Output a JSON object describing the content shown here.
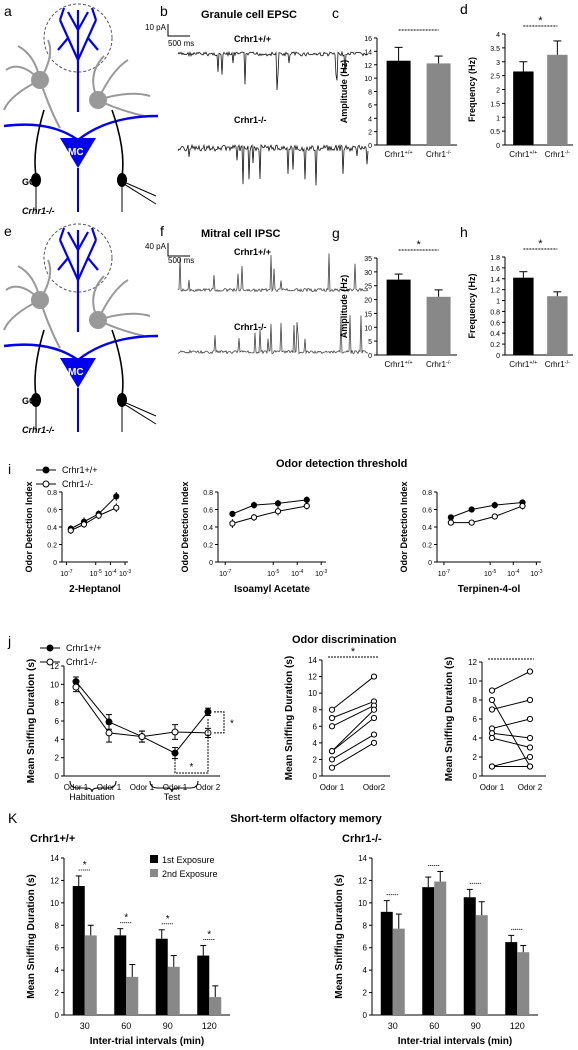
{
  "panels": {
    "a": {
      "letter": "a",
      "mc": "MC",
      "gc": "GC",
      "genotype": "Crhr1-/-"
    },
    "b": {
      "letter": "b",
      "title": "Granule cell EPSC",
      "scale_y": "10 pA",
      "scale_x": "500 ms",
      "trace_wt": "Crhr1+/+",
      "trace_ko": "Crhr1-/-"
    },
    "e": {
      "letter": "e",
      "mc": "MC",
      "gc": "GC",
      "genotype": "Crhr1-/-"
    },
    "f": {
      "letter": "f",
      "title": "Mitral cell IPSC",
      "scale_y": "40 pA",
      "scale_x": "500 ms",
      "trace_wt": "Crhr1+/+",
      "trace_ko": "Crhr1-/-"
    },
    "i": {
      "letter": "i",
      "title": "Odor detection threshold"
    },
    "j": {
      "letter": "j",
      "title": "Odor discrimination",
      "group_habituation": "Habituation",
      "group_test": "Test"
    },
    "k": {
      "letter": "K",
      "title": "Short-term olfactory memory",
      "left_label": "Crhr1+/+",
      "right_label": "Crhr1-/-"
    }
  },
  "colors": {
    "wt": "#000000",
    "ko": "#888888",
    "neuron_blue": "#0000ee",
    "neuron_gray": "#999999"
  },
  "chart_data": [
    {
      "id": "c",
      "type": "bar",
      "letter": "c",
      "categories": [
        "Crhr1+/+",
        "Crhr1-/-"
      ],
      "values": [
        12.6,
        12.2
      ],
      "errors": [
        2.0,
        1.1
      ],
      "colors": [
        "#000000",
        "#888888"
      ],
      "ylabel": "Amplitude (Hz)",
      "ylim": [
        0,
        16
      ],
      "yticks": [
        0,
        2,
        4,
        6,
        8,
        10,
        12,
        14,
        16
      ],
      "sig": ""
    },
    {
      "id": "d",
      "type": "bar",
      "letter": "d",
      "categories": [
        "Crhr1+/+",
        "Crhr1-/-"
      ],
      "values": [
        2.65,
        3.25
      ],
      "errors": [
        0.35,
        0.5
      ],
      "colors": [
        "#000000",
        "#888888"
      ],
      "ylabel": "Frequency (Hz)",
      "ylim": [
        0,
        4
      ],
      "yticks": [
        0,
        0.5,
        1,
        1.5,
        2,
        2.5,
        3,
        3.5,
        4
      ],
      "sig": "*"
    },
    {
      "id": "g",
      "type": "bar",
      "letter": "g",
      "categories": [
        "Crhr1+/+",
        "Crhr1-/-"
      ],
      "values": [
        27.2,
        21
      ],
      "errors": [
        2.0,
        2.5
      ],
      "colors": [
        "#000000",
        "#888888"
      ],
      "ylabel": "Amplitude (Hz)",
      "ylim": [
        0,
        35
      ],
      "yticks": [
        0,
        5,
        10,
        15,
        20,
        25,
        30,
        35
      ],
      "sig": "*"
    },
    {
      "id": "h",
      "type": "bar",
      "letter": "h",
      "categories": [
        "Crhr1+/+",
        "Crhr1-/-"
      ],
      "values": [
        1.42,
        1.08
      ],
      "errors": [
        0.11,
        0.08
      ],
      "colors": [
        "#000000",
        "#888888"
      ],
      "ylabel": "Frequency (Hz)",
      "ylim": [
        0,
        1.8
      ],
      "yticks": [
        0,
        0.2,
        0.4,
        0.6,
        0.8,
        1,
        1.2,
        1.4,
        1.6,
        1.8
      ],
      "sig": "*"
    },
    {
      "id": "i1",
      "type": "line",
      "xlabel": "2-Heptanol",
      "ylabel": "Odor Detection Index",
      "x": [
        -7,
        -6,
        -5,
        -4,
        -3
      ],
      "xticks": [
        "10-7",
        "10-5",
        "10-4",
        "10-3"
      ],
      "xtick_pos": [
        -7,
        -5,
        -4,
        -3
      ],
      "ylim": [
        0,
        0.8
      ],
      "yticks": [
        0,
        0.2,
        0.4,
        0.6,
        0.8
      ],
      "series": [
        {
          "name": "Crhr1+/+",
          "fill": "#000000",
          "values": [
            0.38,
            0.46,
            0.55,
            0.75
          ],
          "x": [
            -6.7,
            -5.8,
            -4.8,
            -3.6
          ],
          "err": [
            0.04,
            0.05,
            0.04,
            0.05
          ]
        },
        {
          "name": "Crhr1-/-",
          "fill": "#ffffff",
          "values": [
            0.36,
            0.43,
            0.53,
            0.62
          ],
          "x": [
            -6.7,
            -5.8,
            -4.8,
            -3.6
          ],
          "err": [
            0.04,
            0.04,
            0.04,
            0.05
          ]
        }
      ]
    },
    {
      "id": "i2",
      "type": "line",
      "xlabel": "Isoamyl Acetate",
      "ylabel": "Odor Detection Index",
      "xticks": [
        "10-7",
        "10-5",
        "10-4",
        "10-3"
      ],
      "xtick_pos": [
        -7,
        -5,
        -4,
        -3
      ],
      "ylim": [
        0,
        0.8
      ],
      "yticks": [
        0,
        0.2,
        0.4,
        0.6,
        0.8
      ],
      "series": [
        {
          "name": "Crhr1+/+",
          "fill": "#000000",
          "values": [
            0.55,
            0.65,
            0.67,
            0.71
          ],
          "x": [
            -6.7,
            -5.8,
            -4.8,
            -3.6
          ],
          "err": [
            0.03,
            0.04,
            0.04,
            0.04
          ]
        },
        {
          "name": "Crhr1-/-",
          "fill": "#ffffff",
          "values": [
            0.44,
            0.51,
            0.58,
            0.64
          ],
          "x": [
            -6.7,
            -5.8,
            -4.8,
            -3.6
          ],
          "err": [
            0.05,
            0.04,
            0.05,
            0.04
          ]
        }
      ]
    },
    {
      "id": "i3",
      "type": "line",
      "xlabel": "Terpinen-4-ol",
      "ylabel": "Odor Detection Index",
      "xticks": [
        "10-7",
        "10-5",
        "10-4",
        "10-3"
      ],
      "xtick_pos": [
        -7,
        -5,
        -4,
        -3
      ],
      "ylim": [
        0,
        0.8
      ],
      "yticks": [
        0,
        0.2,
        0.4,
        0.6,
        0.8
      ],
      "series": [
        {
          "name": "Crhr1+/+",
          "fill": "#000000",
          "values": [
            0.51,
            0.6,
            0.65,
            0.68
          ],
          "x": [
            -6.7,
            -5.8,
            -4.8,
            -3.6
          ],
          "err": [
            0.03,
            0.03,
            0.04,
            0.03
          ]
        },
        {
          "name": "Crhr1-/-",
          "fill": "#ffffff",
          "values": [
            0.45,
            0.45,
            0.52,
            0.64
          ],
          "x": [
            -6.7,
            -5.8,
            -4.8,
            -3.6
          ],
          "err": [
            0.03,
            0.03,
            0.03,
            0.04
          ]
        }
      ]
    },
    {
      "id": "j1",
      "type": "line",
      "ylabel": "Mean Sniffing Duration (s)",
      "categories": [
        "Odor 1",
        "Odor 1",
        "Odor 1",
        "Odor 1",
        "Odor 2"
      ],
      "ylim": [
        0,
        12
      ],
      "yticks": [
        0,
        2,
        4,
        6,
        8,
        10,
        12
      ],
      "series": [
        {
          "name": "Crhr1+/+",
          "fill": "#000000",
          "values": [
            10.3,
            5.9,
            4.3,
            2.5,
            7.0
          ],
          "err": [
            0.5,
            0.8,
            0.6,
            0.6,
            0.4
          ]
        },
        {
          "name": "Crhr1-/-",
          "fill": "#ffffff",
          "values": [
            9.7,
            4.7,
            4.3,
            4.8,
            4.7
          ],
          "err": [
            0.5,
            1.0,
            0.6,
            0.8,
            0.5
          ]
        }
      ],
      "sig": [
        "*",
        "*"
      ]
    },
    {
      "id": "j2",
      "type": "line",
      "ylabel": "Mean Sniffing Duration (s)",
      "categories": [
        "Odor 1",
        "Odor2"
      ],
      "ylim": [
        0,
        14
      ],
      "yticks": [
        0,
        2,
        4,
        6,
        8,
        10,
        12,
        14
      ],
      "sig": "*",
      "pairs": [
        [
          8,
          12
        ],
        [
          7,
          9
        ],
        [
          6,
          8.5
        ],
        [
          3,
          8
        ],
        [
          3,
          7
        ],
        [
          2,
          5
        ],
        [
          1,
          4
        ]
      ]
    },
    {
      "id": "j3",
      "type": "line",
      "ylabel": "Mean Sniffing Duration (s)",
      "categories": [
        "Odor 1",
        "Odor 2"
      ],
      "ylim": [
        0,
        12
      ],
      "yticks": [
        0,
        2,
        4,
        6,
        8,
        10,
        12
      ],
      "sig": "",
      "pairs": [
        [
          9,
          11
        ],
        [
          7,
          8
        ],
        [
          5,
          6
        ],
        [
          4.5,
          4
        ],
        [
          4,
          3
        ],
        [
          1,
          2
        ],
        [
          1,
          1
        ],
        [
          8,
          1
        ]
      ]
    },
    {
      "id": "k1",
      "type": "bar",
      "ylabel": "Mean Sniffing Duration (s)",
      "xlabel": "Inter-trial intervals (min)",
      "categories": [
        "30",
        "60",
        "90",
        "120"
      ],
      "ylim": [
        0,
        14
      ],
      "yticks": [
        0,
        2,
        4,
        6,
        8,
        10,
        12,
        14
      ],
      "series": [
        {
          "name": "1st Exposure",
          "color": "#000000",
          "values": [
            11.5,
            7.1,
            6.8,
            5.3
          ],
          "err": [
            0.9,
            0.6,
            0.8,
            0.9
          ]
        },
        {
          "name": "2nd Exposure",
          "color": "#888888",
          "values": [
            7.1,
            3.4,
            4.3,
            1.6
          ],
          "err": [
            0.9,
            1.1,
            1.0,
            1.0
          ]
        }
      ],
      "sig": [
        "*",
        "*",
        "*",
        "*"
      ]
    },
    {
      "id": "k2",
      "type": "bar",
      "ylabel": "Mean Sniffing Duration (s)",
      "xlabel": "Inter-trial intervals (min)",
      "categories": [
        "30",
        "60",
        "90",
        "120"
      ],
      "ylim": [
        0,
        14
      ],
      "yticks": [
        0,
        2,
        4,
        6,
        8,
        10,
        12,
        14
      ],
      "series": [
        {
          "name": "1st Exposure",
          "color": "#000000",
          "values": [
            9.2,
            11.4,
            10.5,
            6.5
          ],
          "err": [
            1.0,
            0.9,
            0.7,
            0.6
          ]
        },
        {
          "name": "2nd Exposure",
          "color": "#888888",
          "values": [
            7.7,
            11.9,
            8.9,
            5.6
          ],
          "err": [
            1.3,
            0.9,
            1.2,
            0.6
          ]
        }
      ],
      "sig": [
        "",
        "",
        "",
        ""
      ]
    }
  ]
}
